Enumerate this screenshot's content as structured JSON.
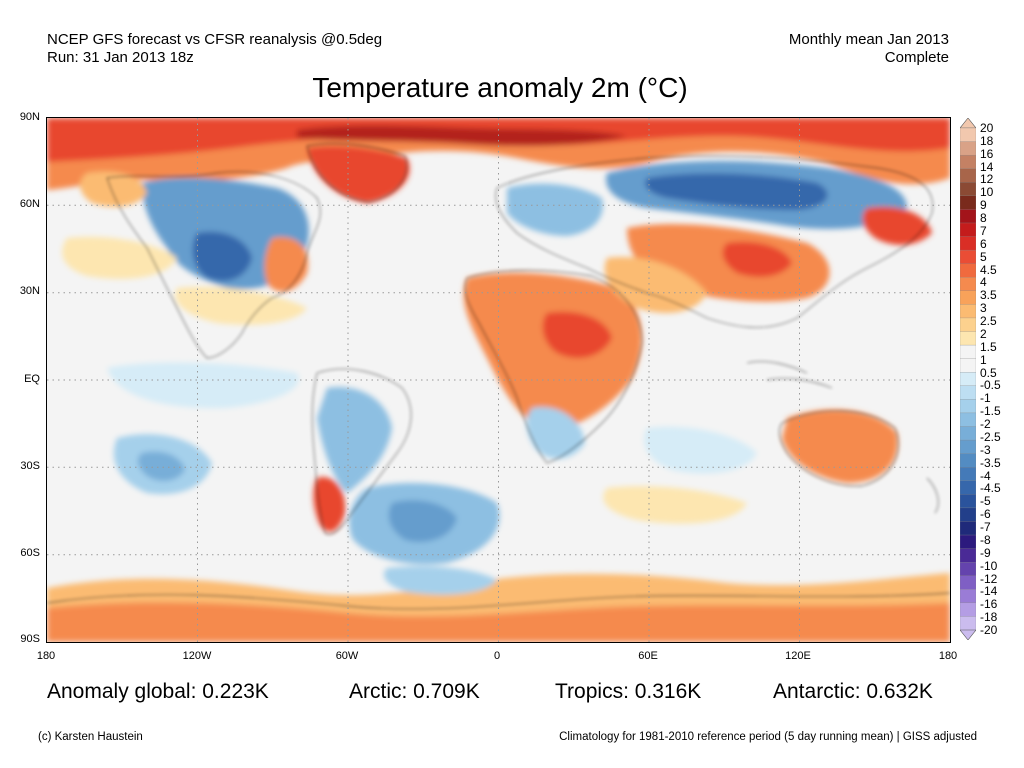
{
  "header": {
    "line1_left": "NCEP GFS forecast vs CFSR reanalysis @0.5deg",
    "line2_left": "Run: 31 Jan 2013 18z",
    "line1_right": "Monthly mean Jan 2013",
    "line2_right": "Complete"
  },
  "title": "Temperature anomaly 2m (°C)",
  "axes": {
    "y_labels": [
      "90N",
      "60N",
      "30N",
      "EQ",
      "30S",
      "60S",
      "90S"
    ],
    "x_labels": [
      "180",
      "120W",
      "60W",
      "0",
      "60E",
      "120E",
      "180"
    ],
    "grid": "dotted"
  },
  "colorbar": {
    "labels": [
      "20",
      "18",
      "16",
      "14",
      "12",
      "10",
      "9",
      "8",
      "7",
      "6",
      "5",
      "4.5",
      "4",
      "3.5",
      "3",
      "2.5",
      "2",
      "1.5",
      "1",
      "0.5",
      "-0.5",
      "-1",
      "-1.5",
      "-2",
      "-2.5",
      "-3",
      "-3.5",
      "-4",
      "-4.5",
      "-5",
      "-6",
      "-7",
      "-8",
      "-9",
      "-10",
      "-12",
      "-14",
      "-16",
      "-18",
      "-20"
    ],
    "colors": [
      "#f2c8ae",
      "#d9a287",
      "#c48164",
      "#a8654a",
      "#8b4a34",
      "#7a2a1c",
      "#a3141a",
      "#c41c1c",
      "#da2e26",
      "#ea4d35",
      "#f06a3e",
      "#f58a4e",
      "#f8a25a",
      "#fbbb72",
      "#fcd18e",
      "#fde6b0",
      "#f4f4f4",
      "#f4f4f4",
      "#d6ecf7",
      "#bddef2",
      "#a5d0eb",
      "#8dbfe2",
      "#78aed8",
      "#659dcd",
      "#538cc2",
      "#447ab8",
      "#3667ab",
      "#2a539c",
      "#223f8a",
      "#1f2a7a",
      "#2c1a7e",
      "#4a2a96",
      "#6443ad",
      "#7f5fc4",
      "#9a7cd6",
      "#b49de4",
      "#cbbcee"
    ],
    "top_arrow_color": "#f2c8ae",
    "bottom_arrow_color": "#cbbcee"
  },
  "stats": {
    "global": "Anomaly global: 0.223K",
    "arctic": "Arctic: 0.709K",
    "tropics": "Tropics: 0.316K",
    "antarctic": "Antarctic: 0.632K"
  },
  "footer": {
    "left": "(c) Karsten Haustein",
    "right": "Climatology for 1981-2010 reference period (5 day running mean) | GISS adjusted"
  },
  "map_colors": {
    "ocean_neutral": "#f4f4f4",
    "warm_light": "#fde6b0",
    "warm_mid": "#fbbb72",
    "warm_strong": "#f58a4e",
    "warm_hot": "#e8462f",
    "warm_extreme": "#b3241e",
    "cold_light": "#d6ecf7",
    "cold_mid": "#a5d0eb",
    "cold_strong": "#659dcd",
    "cold_deep": "#3667ab"
  }
}
